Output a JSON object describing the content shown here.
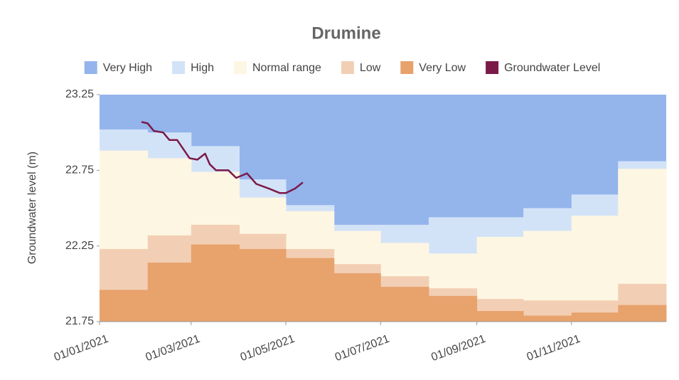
{
  "chart_data": {
    "type": "band-step",
    "title": "Drumine",
    "y_label": "Groundwater level (m)",
    "x": [
      "01/01/2021",
      "01/02/2021",
      "01/03/2021",
      "01/04/2021",
      "01/05/2021",
      "01/06/2021",
      "01/07/2021",
      "01/08/2021",
      "01/09/2021",
      "01/10/2021",
      "01/11/2021",
      "01/12/2021"
    ],
    "xlim": [
      "01/01/2021",
      "31/12/2021"
    ],
    "xticks": [
      "01/01/2021",
      "01/03/2021",
      "01/05/2021",
      "01/07/2021",
      "01/09/2021",
      "01/11/2021"
    ],
    "ylim": [
      21.75,
      23.25
    ],
    "yticks": [
      21.75,
      22.25,
      22.75,
      23.25
    ],
    "series": [
      {
        "name": "Very High",
        "color": "#94b4ec"
      },
      {
        "name": "High",
        "color": "#d3e3f7",
        "values": [
          23.02,
          23.0,
          22.91,
          22.69,
          22.52,
          22.39,
          22.39,
          22.44,
          22.44,
          22.5,
          22.59,
          22.81
        ]
      },
      {
        "name": "Normal range",
        "color": "#fdf6e3",
        "values": [
          22.88,
          22.83,
          22.74,
          22.57,
          22.48,
          22.35,
          22.27,
          22.2,
          22.31,
          22.35,
          22.45,
          22.76
        ]
      },
      {
        "name": "Low",
        "color": "#f2cfb4",
        "values": [
          22.23,
          22.32,
          22.39,
          22.33,
          22.23,
          22.13,
          22.05,
          21.97,
          21.9,
          21.89,
          21.89,
          22.0
        ]
      },
      {
        "name": "Very Low",
        "color": "#e8a26c",
        "values": [
          21.96,
          22.14,
          22.26,
          22.23,
          22.17,
          22.07,
          21.98,
          21.92,
          21.82,
          21.79,
          21.81,
          21.86
        ]
      }
    ],
    "line": {
      "name": "Groundwater Level",
      "color": "#7a1a48",
      "x": [
        "28/01/2021",
        "01/02/2021",
        "05/02/2021",
        "11/02/2021",
        "15/02/2021",
        "20/02/2021",
        "24/02/2021",
        "28/02/2021",
        "05/03/2021",
        "10/03/2021",
        "13/03/2021",
        "17/03/2021",
        "25/03/2021",
        "30/03/2021",
        "06/04/2021",
        "12/04/2021",
        "20/04/2021",
        "27/04/2021",
        "01/05/2021",
        "07/05/2021",
        "12/05/2021"
      ],
      "values": [
        23.07,
        23.06,
        23.01,
        23.0,
        22.95,
        22.95,
        22.89,
        22.83,
        22.82,
        22.86,
        22.79,
        22.75,
        22.75,
        22.7,
        22.73,
        22.66,
        22.63,
        22.6,
        22.6,
        22.63,
        22.67
      ]
    }
  }
}
